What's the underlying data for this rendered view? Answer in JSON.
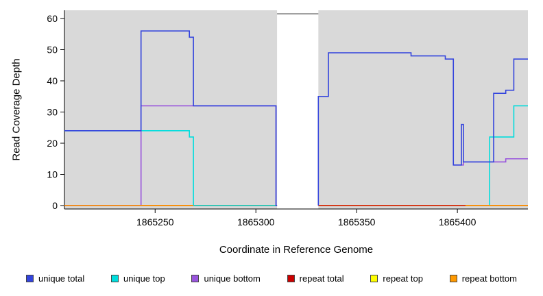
{
  "chart_data": {
    "type": "line",
    "step": true,
    "title": "",
    "xlabel": "Coordinate in Reference Genome",
    "ylabel": "Read Coverage Depth",
    "xlim": [
      1865205,
      1865435
    ],
    "ylim": [
      0,
      60
    ],
    "x_ticks": [
      1865250,
      1865300,
      1865350,
      1865400
    ],
    "y_ticks": [
      0,
      10,
      20,
      30,
      40,
      50,
      60
    ],
    "grid": false,
    "legend_position": "bottom",
    "plot_bg": "#d9d9d9",
    "gap_region": {
      "x_start": 1865310.5,
      "x_end": 1865331,
      "top_value": 61.5
    },
    "series": [
      {
        "name": "unique total",
        "color": "#3344dd",
        "z": 6,
        "points": [
          [
            1865205,
            24
          ],
          [
            1865243,
            56
          ],
          [
            1865267,
            54
          ],
          [
            1865269,
            32
          ],
          [
            1865310,
            0
          ],
          [
            1865310.5,
            null
          ],
          [
            1865331,
            0
          ],
          [
            1865331,
            35
          ],
          [
            1865336,
            49
          ],
          [
            1865377,
            48
          ],
          [
            1865394,
            47
          ],
          [
            1865398,
            13
          ],
          [
            1865402,
            26
          ],
          [
            1865403,
            14
          ],
          [
            1865418,
            36
          ],
          [
            1865424,
            37
          ],
          [
            1865428,
            47
          ],
          [
            1865435,
            47
          ]
        ]
      },
      {
        "name": "unique top",
        "color": "#00dddd",
        "z": 3,
        "points": [
          [
            1865205,
            24
          ],
          [
            1865267,
            22
          ],
          [
            1865269,
            0
          ],
          [
            1865310.5,
            null
          ],
          [
            1865416,
            0
          ],
          [
            1865416,
            22
          ],
          [
            1865428,
            32
          ],
          [
            1865435,
            32
          ]
        ]
      },
      {
        "name": "unique bottom",
        "color": "#9955dd",
        "z": 4,
        "points": [
          [
            1865205,
            0
          ],
          [
            1865243,
            32
          ],
          [
            1865310,
            0
          ],
          [
            1865310.5,
            null
          ],
          [
            1865398,
            13
          ],
          [
            1865403,
            14
          ],
          [
            1865424,
            15
          ],
          [
            1865435,
            15
          ]
        ]
      },
      {
        "name": "repeat total",
        "color": "#cc0000",
        "z": 2,
        "points": [
          [
            1865205,
            0
          ],
          [
            1865310.5,
            null
          ],
          [
            1865331,
            0
          ],
          [
            1865435,
            0
          ]
        ]
      },
      {
        "name": "repeat top",
        "color": "#ffff00",
        "z": 1,
        "points": [
          [
            1865205,
            0
          ],
          [
            1865310.5,
            null
          ],
          [
            1865331,
            0
          ],
          [
            1865435,
            0
          ]
        ]
      },
      {
        "name": "repeat bottom",
        "color": "#ff9900",
        "z": 5,
        "points": [
          [
            1865205,
            0
          ],
          [
            1865269,
            null
          ],
          [
            1865404,
            0
          ],
          [
            1865435,
            0
          ]
        ]
      }
    ]
  }
}
